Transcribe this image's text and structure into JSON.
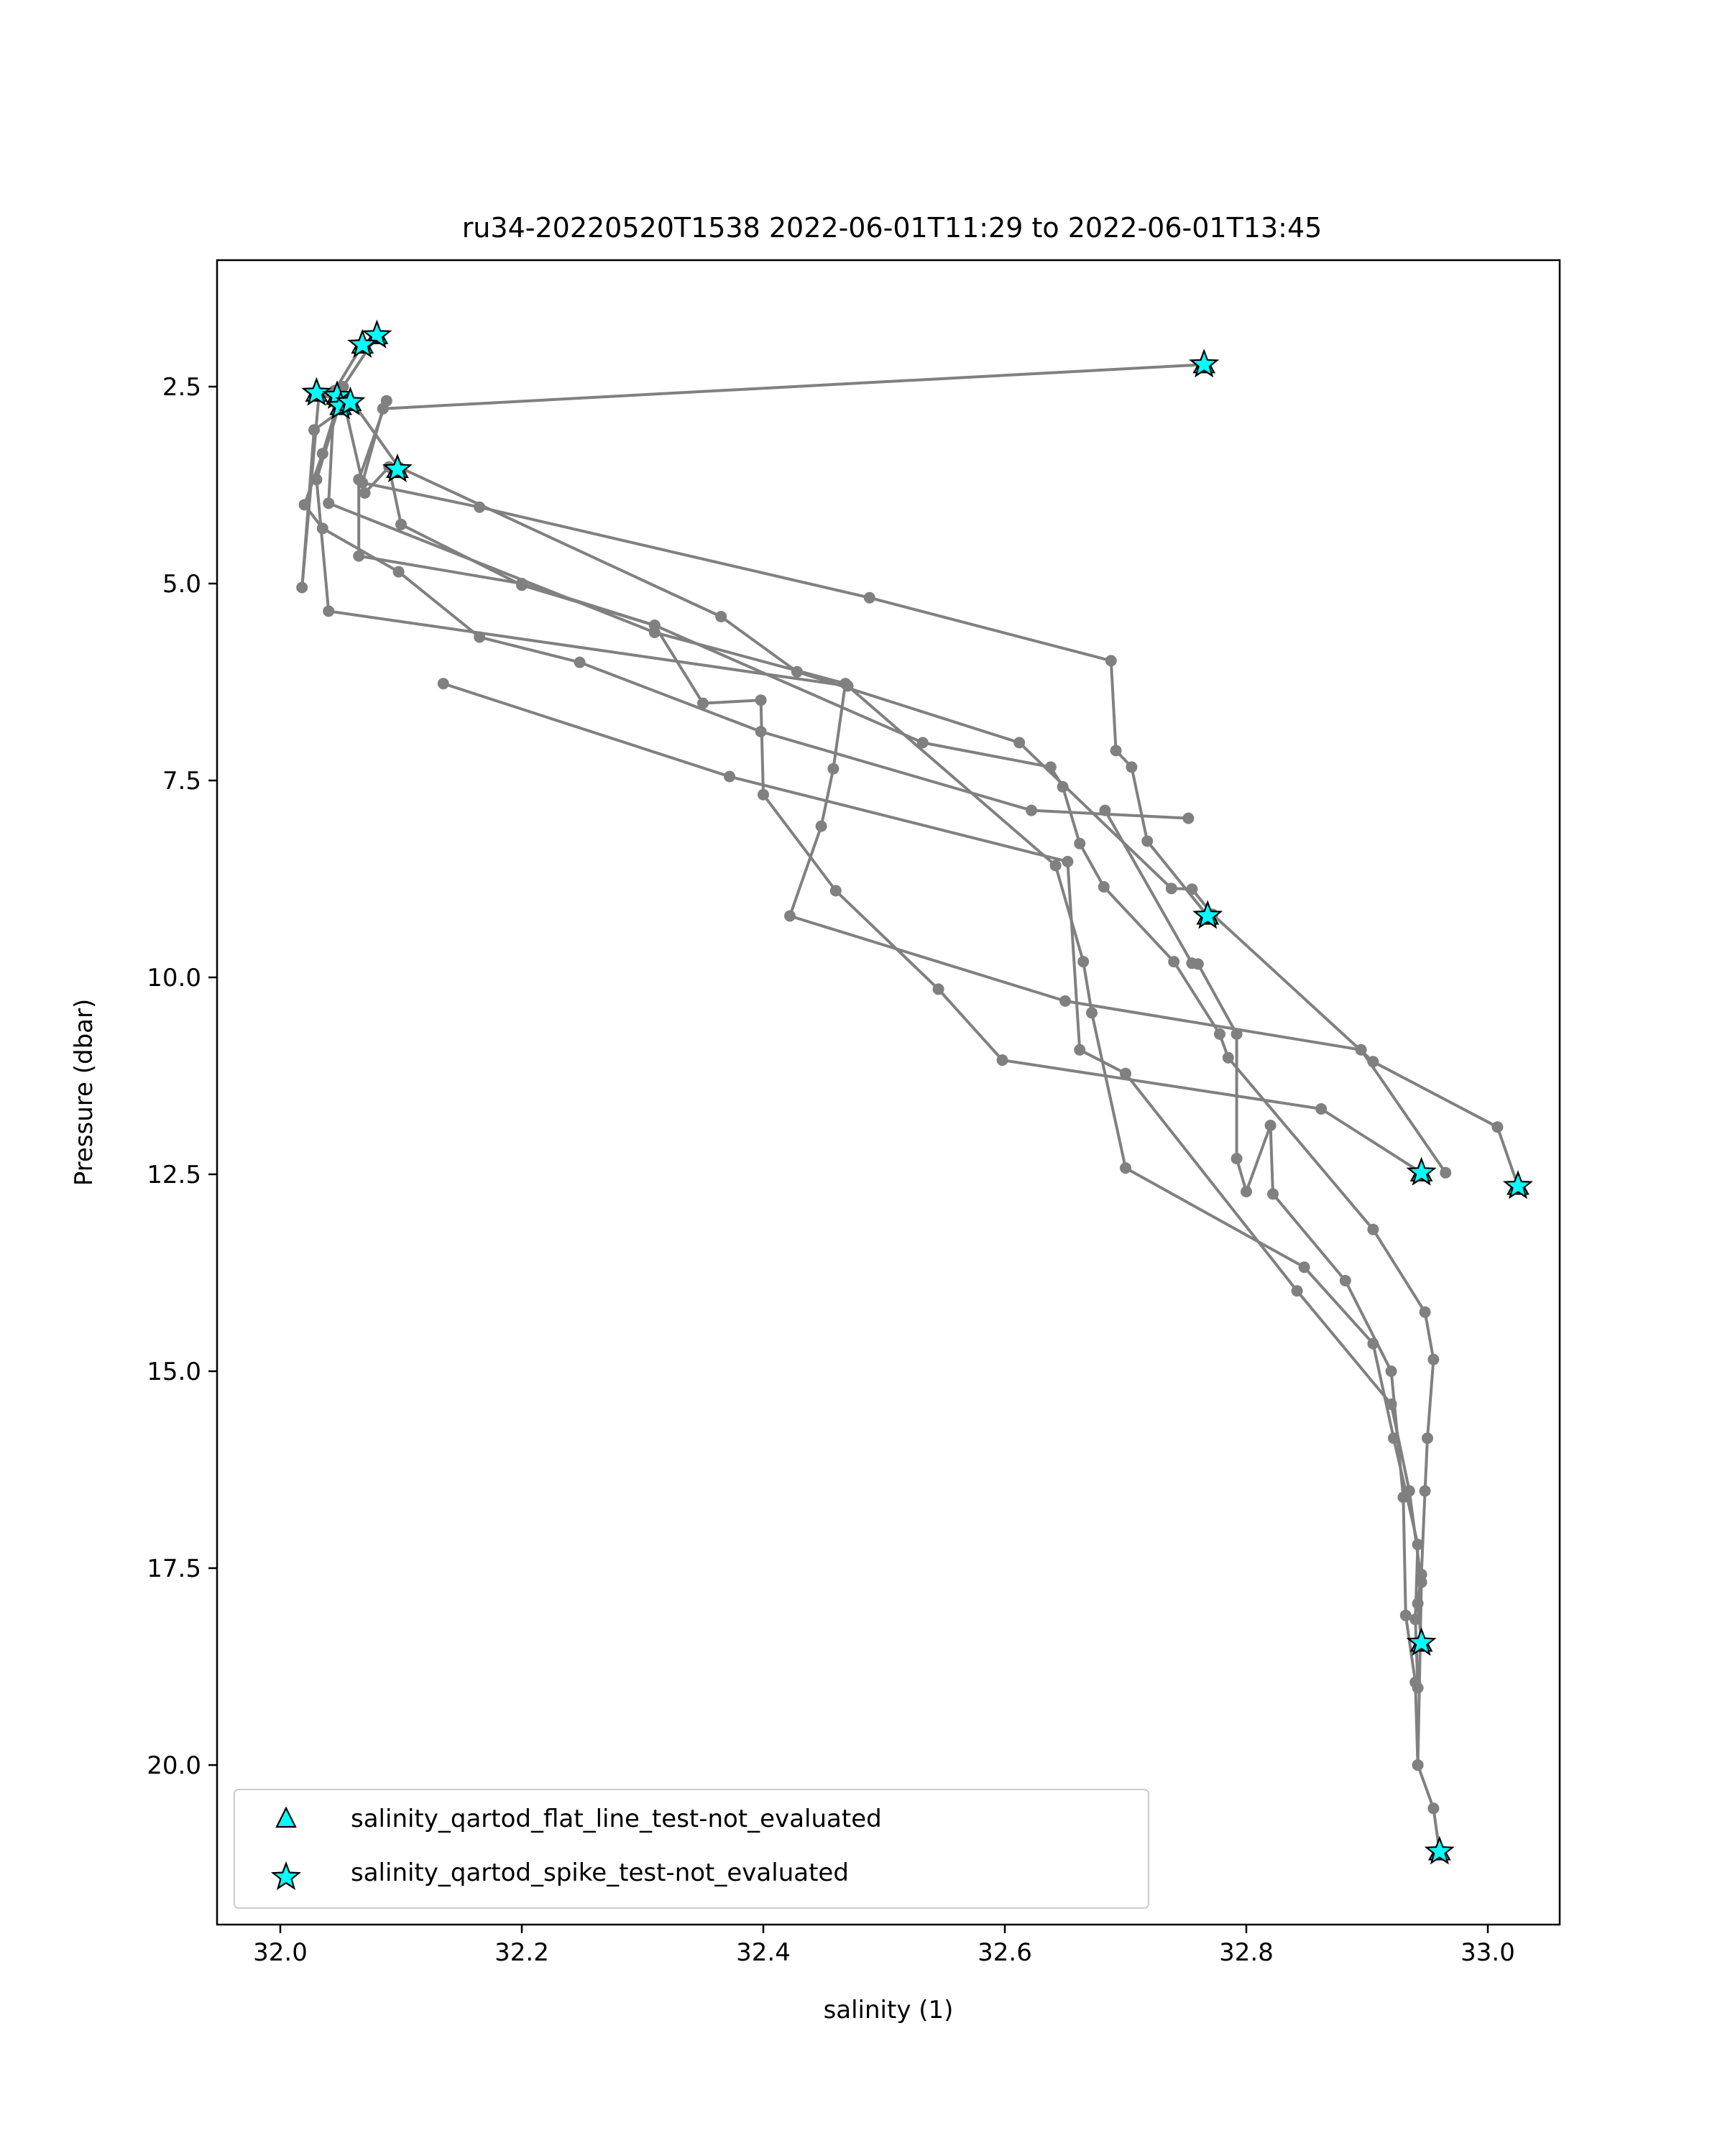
{
  "chart_data": {
    "type": "scatter",
    "title": "ru34-20220520T1538 2022-06-01T11:29 to 2022-06-01T13:45",
    "xlabel": "salinity (1)",
    "ylabel": "Pressure (dbar)",
    "xlim": [
      31.98,
      33.08
    ],
    "ylim": [
      22.05,
      1.15
    ],
    "y_inverted": true,
    "grid": false,
    "x_ticks": [
      {
        "value": 32.0,
        "label": "32.0"
      },
      {
        "value": 32.2,
        "label": "32.2"
      },
      {
        "value": 32.4,
        "label": "32.4"
      },
      {
        "value": 32.6,
        "label": "32.6"
      },
      {
        "value": 32.8,
        "label": "32.8"
      },
      {
        "value": 33.0,
        "label": "33.0"
      }
    ],
    "y_ticks": [
      {
        "value": 2.5,
        "label": "2.5"
      },
      {
        "value": 5.0,
        "label": "5.0"
      },
      {
        "value": 7.5,
        "label": "7.5"
      },
      {
        "value": 10.0,
        "label": "10.0"
      },
      {
        "value": 12.5,
        "label": "12.5"
      },
      {
        "value": 15.0,
        "label": "15.0"
      },
      {
        "value": 17.5,
        "label": "17.5"
      },
      {
        "value": 20.0,
        "label": "20.0"
      }
    ],
    "profile_color": "#808080",
    "profiles": [
      [
        [
          32.765,
          2.22
        ],
        [
          32.085,
          2.78
        ],
        [
          32.068,
          3.72
        ],
        [
          32.165,
          4.03
        ],
        [
          32.488,
          5.18
        ],
        [
          32.688,
          5.98
        ],
        [
          32.692,
          7.12
        ],
        [
          32.705,
          7.33
        ],
        [
          32.718,
          8.27
        ],
        [
          32.768,
          9.22
        ]
      ],
      [
        [
          32.052,
          2.65
        ],
        [
          32.07,
          3.85
        ],
        [
          32.09,
          3.52
        ],
        [
          32.1,
          4.25
        ],
        [
          32.2,
          5.02
        ],
        [
          32.31,
          5.53
        ],
        [
          32.35,
          6.52
        ],
        [
          32.398,
          6.48
        ],
        [
          32.4,
          7.68
        ],
        [
          32.46,
          8.9
        ],
        [
          32.545,
          10.15
        ],
        [
          32.598,
          11.05
        ],
        [
          32.862,
          11.67
        ],
        [
          32.945,
          12.48
        ]
      ],
      [
        [
          32.08,
          1.85
        ],
        [
          32.052,
          2.5
        ],
        [
          32.035,
          3.35
        ],
        [
          32.02,
          4.0
        ],
        [
          32.035,
          4.3
        ],
        [
          32.098,
          4.85
        ],
        [
          32.165,
          5.68
        ],
        [
          32.248,
          6.0
        ],
        [
          32.398,
          6.88
        ],
        [
          32.622,
          7.88
        ],
        [
          32.752,
          7.98
        ]
      ],
      [
        [
          32.068,
          1.97
        ],
        [
          32.045,
          2.55
        ],
        [
          32.04,
          3.98
        ],
        [
          32.31,
          5.62
        ],
        [
          32.468,
          6.27
        ],
        [
          32.458,
          7.35
        ],
        [
          32.448,
          8.08
        ],
        [
          32.422,
          9.22
        ],
        [
          32.65,
          10.3
        ],
        [
          32.895,
          10.92
        ],
        [
          32.965,
          12.48
        ]
      ],
      [
        [
          32.058,
          2.72
        ],
        [
          32.028,
          3.05
        ],
        [
          32.018,
          5.05
        ],
        [
          32.032,
          2.6
        ],
        [
          32.06,
          2.7
        ],
        [
          32.098,
          3.52
        ],
        [
          32.365,
          5.42
        ],
        [
          32.428,
          6.12
        ],
        [
          32.612,
          7.02
        ],
        [
          32.738,
          8.87
        ],
        [
          32.755,
          8.88
        ],
        [
          32.772,
          9.2
        ],
        [
          32.905,
          11.07
        ],
        [
          33.008,
          11.9
        ],
        [
          33.025,
          12.65
        ]
      ],
      [
        [
          32.088,
          2.68
        ],
        [
          32.065,
          3.68
        ],
        [
          32.065,
          4.65
        ],
        [
          32.2,
          5.0
        ],
        [
          32.31,
          5.53
        ],
        [
          32.532,
          7.02
        ],
        [
          32.638,
          7.33
        ],
        [
          32.648,
          7.58
        ],
        [
          32.662,
          8.3
        ],
        [
          32.682,
          8.85
        ],
        [
          32.74,
          9.8
        ],
        [
          32.778,
          10.72
        ],
        [
          32.785,
          11.02
        ],
        [
          32.905,
          13.2
        ],
        [
          32.948,
          14.25
        ],
        [
          32.955,
          14.85
        ],
        [
          32.95,
          15.85
        ],
        [
          32.948,
          16.52
        ],
        [
          32.945,
          17.58
        ],
        [
          32.942,
          17.95
        ],
        [
          32.945,
          18.45
        ]
      ],
      [
        [
          32.05,
          2.68
        ],
        [
          32.03,
          3.68
        ],
        [
          32.04,
          5.35
        ],
        [
          32.47,
          6.3
        ],
        [
          32.642,
          8.58
        ],
        [
          32.665,
          9.8
        ],
        [
          32.672,
          10.45
        ],
        [
          32.7,
          12.42
        ],
        [
          32.848,
          13.68
        ],
        [
          32.905,
          14.65
        ],
        [
          32.922,
          15.85
        ],
        [
          32.942,
          17.2
        ],
        [
          32.94,
          18.15
        ],
        [
          32.942,
          19.02
        ]
      ],
      [
        [
          32.135,
          6.27
        ],
        [
          32.372,
          7.45
        ],
        [
          32.652,
          8.53
        ],
        [
          32.662,
          10.92
        ],
        [
          32.7,
          11.22
        ],
        [
          32.842,
          13.98
        ],
        [
          32.92,
          15.42
        ],
        [
          32.935,
          16.52
        ],
        [
          32.945,
          17.68
        ],
        [
          32.942,
          20.0
        ],
        [
          32.955,
          20.55
        ],
        [
          32.96,
          21.1
        ]
      ],
      [
        [
          32.683,
          7.88
        ],
        [
          32.755,
          9.82
        ],
        [
          32.76,
          9.83
        ],
        [
          32.792,
          10.72
        ],
        [
          32.792,
          12.3
        ],
        [
          32.8,
          12.72
        ],
        [
          32.82,
          11.88
        ],
        [
          32.822,
          12.75
        ],
        [
          32.882,
          13.85
        ],
        [
          32.92,
          15.0
        ],
        [
          32.93,
          16.6
        ],
        [
          32.932,
          18.1
        ],
        [
          32.94,
          18.95
        ],
        [
          32.942,
          20.0
        ]
      ]
    ],
    "flagged_points": [
      {
        "x": 32.765,
        "y": 2.22
      },
      {
        "x": 32.08,
        "y": 1.85
      },
      {
        "x": 32.068,
        "y": 1.97
      },
      {
        "x": 32.03,
        "y": 2.58
      },
      {
        "x": 32.047,
        "y": 2.62
      },
      {
        "x": 32.05,
        "y": 2.75
      },
      {
        "x": 32.058,
        "y": 2.7
      },
      {
        "x": 32.097,
        "y": 3.55
      },
      {
        "x": 32.768,
        "y": 9.22
      },
      {
        "x": 32.945,
        "y": 12.48
      },
      {
        "x": 33.025,
        "y": 12.65
      },
      {
        "x": 32.945,
        "y": 18.45
      },
      {
        "x": 32.96,
        "y": 21.1
      }
    ],
    "flag_color": "#00ffff",
    "legend": {
      "placement": "lower-left",
      "entries": [
        {
          "label": "salinity_qartod_flat_line_test-not_evaluated",
          "marker": "triangle"
        },
        {
          "label": "salinity_qartod_spike_test-not_evaluated",
          "marker": "star"
        }
      ]
    }
  }
}
